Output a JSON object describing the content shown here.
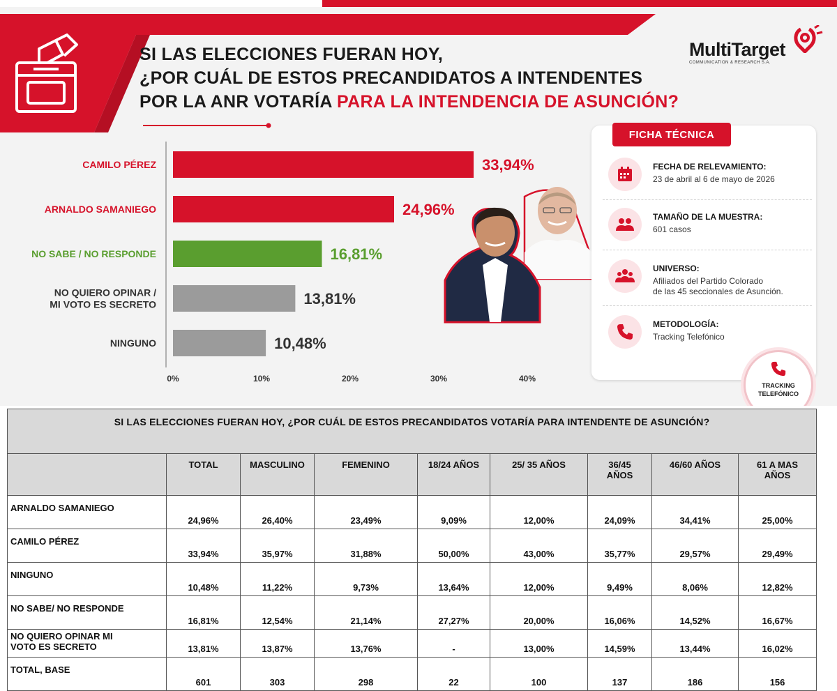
{
  "infographic": {
    "title_lines": [
      "SI LAS ELECCIONES FUERAN HOY,",
      "¿POR CUÁL DE ESTOS PRECANDIDATOS A INTENDENTES"
    ],
    "title_line3_plain": "POR LA ANR VOTARÍA ",
    "title_line3_accent": "PARA LA INTENDENCIA DE ASUNCIÓN?",
    "logo": {
      "name": "MultiTarget",
      "sub": "COMMUNICATION & RESEARCH S.A."
    },
    "ficha": {
      "heading": "FICHA TÉCNICA",
      "items": [
        {
          "label": "FECHA DE RELEVAMIENTO:",
          "value": "23 de abril al 6 de mayo de 2026",
          "icon": "calendar-icon"
        },
        {
          "label": "TAMAÑO DE LA MUESTRA:",
          "value": "601 casos",
          "icon": "people-icon"
        },
        {
          "label": "UNIVERSO:",
          "value": "Afiliados del Partido Colorado",
          "value2": "de las 45 seccionales de Asunción.",
          "icon": "group-icon"
        },
        {
          "label": "METODOLOGÍA:",
          "value": "Tracking Telefónico",
          "icon": "phone-icon"
        }
      ],
      "badge_lines": [
        "TRACKING",
        "TELEFÓNICO"
      ]
    }
  },
  "chart_data": {
    "type": "bar",
    "orientation": "horizontal",
    "categories": [
      "CAMILO PÉREZ",
      "ARNALDO SAMANIEGO",
      "NO SABE / NO RESPONDE",
      "NO QUIERO OPINAR / MI VOTO ES SECRETO",
      "NINGUNO"
    ],
    "category_lines": [
      [
        "CAMILO PÉREZ"
      ],
      [
        "ARNALDO SAMANIEGO"
      ],
      [
        "NO SABE / NO RESPONDE"
      ],
      [
        "NO QUIERO OPINAR /",
        "MI VOTO ES SECRETO"
      ],
      [
        "NINGUNO"
      ]
    ],
    "values": [
      33.94,
      24.96,
      16.81,
      13.81,
      10.48
    ],
    "value_labels": [
      "33,94%",
      "24,96%",
      "16,81%",
      "13,81%",
      "10,48%"
    ],
    "bar_colors": [
      "#d6122a",
      "#d6122a",
      "#5a9e2f",
      "#9b9b9b",
      "#9b9b9b"
    ],
    "label_colors": [
      "#d6122a",
      "#d6122a",
      "#5a9e2f",
      "#333333",
      "#333333"
    ],
    "value_label_colors": [
      "#d6122a",
      "#d6122a",
      "#5a9e2f",
      "#333333",
      "#333333"
    ],
    "xlim": [
      0,
      40
    ],
    "xticks": [
      0,
      10,
      20,
      30,
      40
    ],
    "xtick_labels": [
      "0%",
      "10%",
      "20%",
      "30%",
      "40%"
    ],
    "grid": false
  },
  "table": {
    "caption": "SI LAS ELECCIONES FUERAN HOY, ¿POR CUÁL DE ESTOS PRECANDIDATOS VOTARÍA PARA INTENDENTE DE ASUNCIÓN?",
    "headers": [
      [
        ""
      ],
      [
        "TOTAL"
      ],
      [
        "MASCULINO"
      ],
      [
        "FEMENINO"
      ],
      [
        "18/24 AÑOS"
      ],
      [
        "25/ 35 AÑOS"
      ],
      [
        "36/45",
        "AÑOS"
      ],
      [
        "46/60 AÑOS"
      ],
      [
        "61 A MAS",
        "AÑOS"
      ]
    ],
    "rows": [
      {
        "label": [
          "ARNALDO SAMANIEGO"
        ],
        "values": [
          "24,96%",
          "26,40%",
          "23,49%",
          "9,09%",
          "12,00%",
          "24,09%",
          "34,41%",
          "25,00%"
        ]
      },
      {
        "label": [
          "CAMILO PÉREZ"
        ],
        "values": [
          "33,94%",
          "35,97%",
          "31,88%",
          "50,00%",
          "43,00%",
          "35,77%",
          "29,57%",
          "29,49%"
        ]
      },
      {
        "label": [
          "NINGUNO"
        ],
        "values": [
          "10,48%",
          "11,22%",
          "9,73%",
          "13,64%",
          "12,00%",
          "9,49%",
          "8,06%",
          "12,82%"
        ]
      },
      {
        "label": [
          "NO SABE/ NO RESPONDE"
        ],
        "values": [
          "16,81%",
          "12,54%",
          "21,14%",
          "27,27%",
          "20,00%",
          "16,06%",
          "14,52%",
          "16,67%"
        ]
      },
      {
        "label": [
          "NO QUIERO OPINAR MI",
          "VOTO ES SECRETO"
        ],
        "values": [
          "13,81%",
          "13,87%",
          "13,76%",
          "-",
          "13,00%",
          "14,59%",
          "13,44%",
          "16,02%"
        ]
      },
      {
        "label": [
          "TOTAL, BASE"
        ],
        "values": [
          "601",
          "303",
          "298",
          "22",
          "100",
          "137",
          "186",
          "156"
        ]
      }
    ]
  },
  "colors": {
    "accent_red": "#d6122a",
    "green": "#5a9e2f",
    "gray_bar": "#9b9b9b",
    "table_header_bg": "#d9d9d9"
  }
}
